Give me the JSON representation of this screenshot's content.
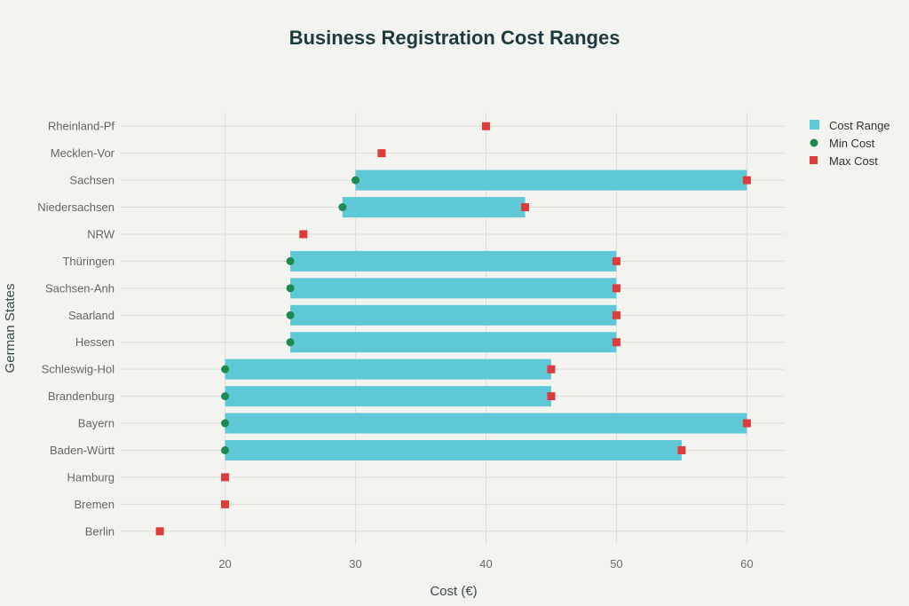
{
  "chart_data": {
    "type": "bar",
    "title": "Business Registration Cost Ranges",
    "xlabel": "Cost (€)",
    "ylabel": "German States",
    "xlim": [
      12,
      62.9
    ],
    "xticks": [
      20,
      30,
      40,
      50,
      60
    ],
    "grid": true,
    "legend_position": "top-right",
    "legend": [
      "Cost Range",
      "Min Cost",
      "Max Cost"
    ],
    "colors": {
      "range": "#5ec8d6",
      "min": "#1e8a52",
      "max": "#de3b3b"
    },
    "categories": [
      "Berlin",
      "Bremen",
      "Hamburg",
      "Baden-Württ",
      "Bayern",
      "Brandenburg",
      "Schleswig-Hol",
      "Hessen",
      "Saarland",
      "Sachsen-Anh",
      "Thüringen",
      "NRW",
      "Niedersachsen",
      "Sachsen",
      "Mecklen-Vor",
      "Rheinland-Pf"
    ],
    "series": [
      {
        "name": "Min Cost",
        "values": [
          null,
          null,
          null,
          20,
          20,
          20,
          20,
          25,
          25,
          25,
          25,
          null,
          29,
          30,
          null,
          null
        ]
      },
      {
        "name": "Max Cost",
        "values": [
          15,
          20,
          20,
          55,
          60,
          45,
          45,
          50,
          50,
          50,
          50,
          26,
          43,
          60,
          32,
          40
        ]
      }
    ]
  }
}
